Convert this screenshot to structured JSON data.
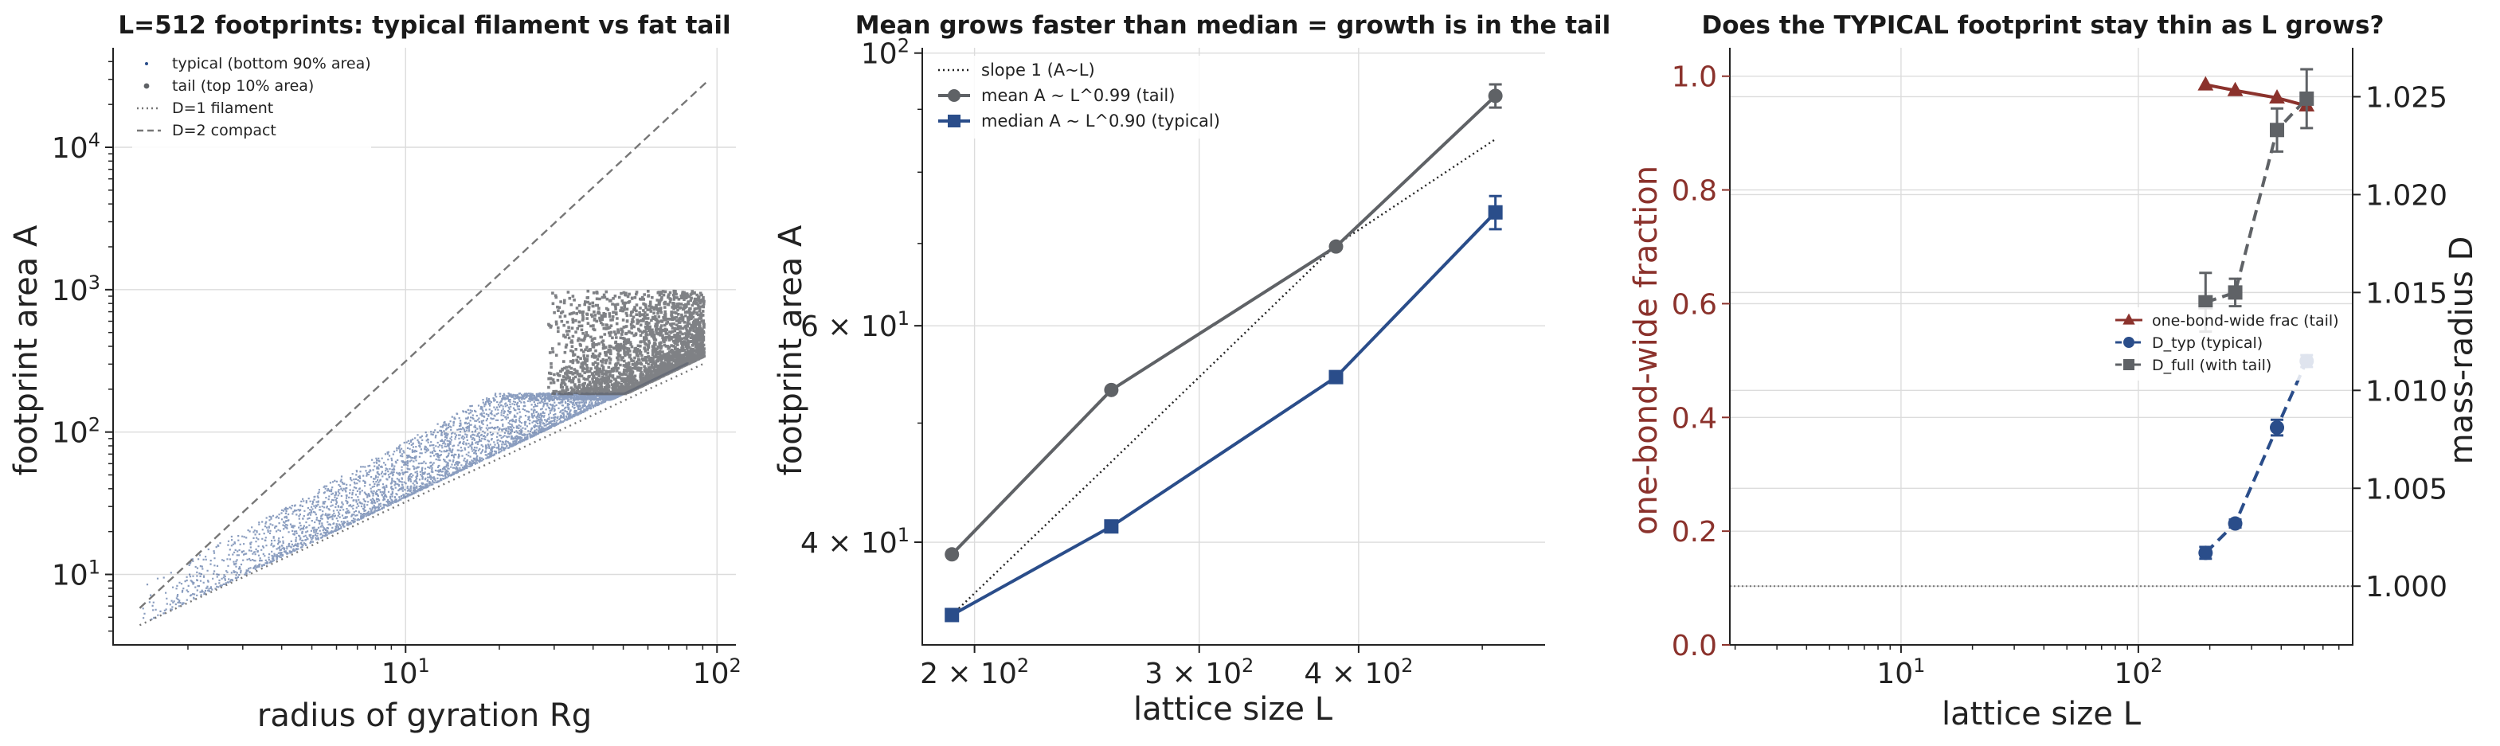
{
  "chart_data": [
    {
      "type": "scatter",
      "title": "L=512 footprints: typical filament vs fat tail",
      "xlabel": "radius of gyration Rg",
      "ylabel": "footprint area A",
      "xscale": "log",
      "yscale": "log",
      "xlim": [
        1.15,
        115
      ],
      "ylim": [
        3.2,
        50000
      ],
      "x_ticks": [
        {
          "value": 10,
          "label": "10",
          "sup": "1"
        },
        {
          "value": 100,
          "label": "10",
          "sup": "2"
        }
      ],
      "y_ticks": [
        {
          "value": 10,
          "label": "10",
          "sup": "1"
        },
        {
          "value": 100,
          "label": "10",
          "sup": "2"
        },
        {
          "value": 1000,
          "label": "10",
          "sup": "3"
        },
        {
          "value": 10000,
          "label": "10",
          "sup": "4"
        }
      ],
      "grid": true,
      "legend": "top-left",
      "series": [
        {
          "name": "typical (bottom 90% area)",
          "style": "points",
          "color": "#2a4d8a",
          "description": "dense cloud of points between the D=1 line and A≈190, Rg from ~1.4 to ~80"
        },
        {
          "name": "tail (top 10% area)",
          "style": "points",
          "color": "#5f6266",
          "description": "points with A from ~190 to ~1000, Rg from ~28 to ~90"
        },
        {
          "name": "D=1 filament",
          "style": "dotted",
          "color": "#777777",
          "x": [
            1.4,
            90
          ],
          "y": [
            4.4,
            300
          ]
        },
        {
          "name": "D=2 compact",
          "style": "dashed",
          "color": "#777777",
          "x": [
            1.4,
            93
          ],
          "y": [
            5.8,
            29000
          ]
        }
      ]
    },
    {
      "type": "line",
      "title": "Mean grows faster than median = growth is in the tail",
      "xlabel": "lattice size L",
      "ylabel": "footprint area A",
      "xscale": "log",
      "yscale": "log",
      "xlim": [
        182,
        560
      ],
      "ylim": [
        33,
        101
      ],
      "x_ticks": [
        {
          "value": 200,
          "label": "2 × 10",
          "sup": "2"
        },
        {
          "value": 300,
          "label": "3 × 10",
          "sup": "2"
        },
        {
          "value": 400,
          "label": "4 × 10",
          "sup": "2"
        }
      ],
      "y_ticks": [
        {
          "value": 40,
          "label": "4 × 10",
          "sup": "1"
        },
        {
          "value": 60,
          "label": "6 × 10",
          "sup": "1"
        },
        {
          "value": 100,
          "label": "10",
          "sup": "2"
        }
      ],
      "grid": true,
      "legend": "top-left",
      "x": [
        192,
        256,
        384,
        512
      ],
      "series": [
        {
          "name": "slope 1 (A~L)",
          "style": "dotted",
          "color": "#222222",
          "values": [
            34.9,
            46.5,
            69.8,
            85.1
          ]
        },
        {
          "name": "mean A ~ L^0.99 (tail)",
          "style": "line-circle",
          "color": "#5f6266",
          "values": [
            39.1,
            53.2,
            69.6,
            92.3
          ],
          "err": [
            0,
            0,
            0,
            2.0
          ]
        },
        {
          "name": "median A ~ L^0.90 (typical)",
          "style": "line-square",
          "color": "#2a4d8a",
          "values": [
            34.9,
            41.2,
            54.5,
            74.2
          ],
          "err": [
            0,
            0,
            0,
            2.3
          ]
        }
      ]
    },
    {
      "type": "line",
      "title": "Does the TYPICAL footprint stay thin as L grows?",
      "xlabel": "lattice size L",
      "ylabel": "one-bond-wide fraction",
      "ylabel_right": "mass-radius D",
      "xscale": "log",
      "xlim": [
        1.9,
        800
      ],
      "ylim": [
        0,
        1.05
      ],
      "ylim_right": [
        0.997,
        1.0275
      ],
      "x_ticks": [
        {
          "value": 10,
          "label": "10",
          "sup": "1"
        },
        {
          "value": 100,
          "label": "10",
          "sup": "2"
        }
      ],
      "y_ticks": [
        "0.0",
        "0.2",
        "0.4",
        "0.6",
        "0.8",
        "1.0"
      ],
      "y_ticks_right": [
        "1.000",
        "1.005",
        "1.010",
        "1.015",
        "1.020",
        "1.025"
      ],
      "grid": true,
      "legend": "center-right",
      "x": [
        192,
        256,
        384,
        512
      ],
      "series": [
        {
          "name": "one-bond-wide frac (tail)",
          "axis": "left",
          "style": "line-triangle",
          "color": "#8b322c",
          "values": [
            0.985,
            0.975,
            0.962,
            0.948
          ]
        },
        {
          "name": "D_typ (typical)",
          "axis": "right",
          "style": "dashed-circle",
          "color": "#2a4d8a",
          "values": [
            1.0017,
            1.0032,
            1.0081,
            1.0115
          ],
          "err": [
            0.0003,
            0.0002,
            0.0004,
            0.0003
          ]
        },
        {
          "name": "D_full (with tail)",
          "axis": "right",
          "style": "dashed-square",
          "color": "#5f6266",
          "values": [
            1.0145,
            1.015,
            1.0233,
            1.0249
          ],
          "err": [
            0.0015,
            0.0007,
            0.0011,
            0.0015
          ]
        }
      ],
      "reference_line": {
        "axis": "right",
        "value": 1.0,
        "style": "dotted",
        "color": "#777777"
      }
    }
  ]
}
